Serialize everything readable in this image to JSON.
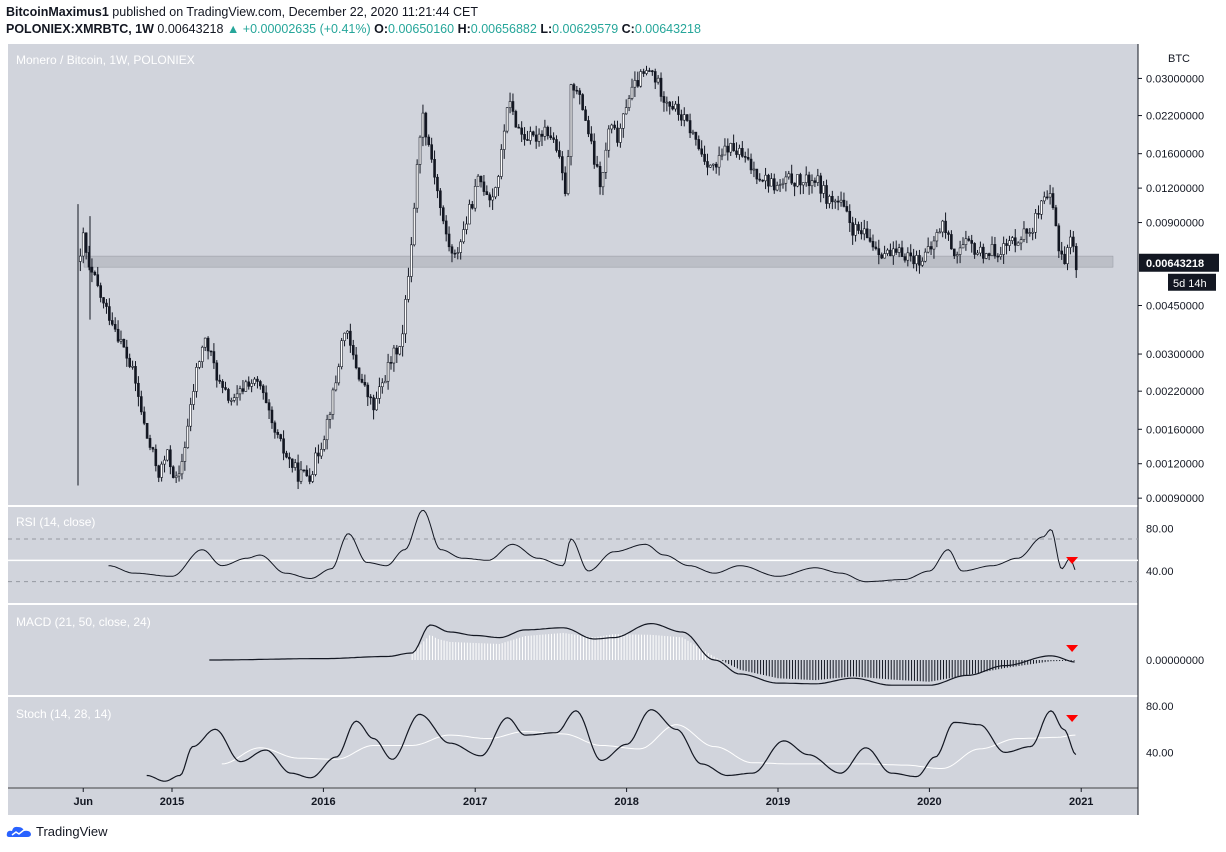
{
  "header": {
    "author": "BitcoinMaximus1",
    "published_text": "published on TradingView.com, December 22, 2020 11:21:44 CET",
    "symbol": "POLONIEX:XMRBTC, 1W",
    "last": "0.00643218",
    "change": "▲ +0.00002635 (+0.41%)",
    "open_label": "O:",
    "open": "0.00650160",
    "high_label": "H:",
    "high": "0.00656882",
    "low_label": "L:",
    "low": "0.00629579",
    "close_label": "C:",
    "close": "0.00643218"
  },
  "chart_data": [
    {
      "type": "candlestick",
      "title": "Monero / Bitcoin, 1W, POLONIEX",
      "currency_label": "BTC",
      "y_scale": "log",
      "y_ticks": [
        "0.03000000",
        "0.02200000",
        "0.01600000",
        "0.01200000",
        "0.00900000",
        "0.00450000",
        "0.00300000",
        "0.00220000",
        "0.00160000",
        "0.00120000",
        "0.00090000"
      ],
      "ylim": [
        0.00085,
        0.04
      ],
      "last_price": "0.00643218",
      "countdown": "5d 14h",
      "support_zone": [
        0.0062,
        0.0068
      ],
      "price_path": [
        [
          "2014-05-25",
          0.0065
        ],
        [
          "2014-06-01",
          0.008
        ],
        [
          "2014-06-15",
          0.006
        ],
        [
          "2014-07-01",
          0.0055
        ],
        [
          "2014-07-20",
          0.0045
        ],
        [
          "2014-08-10",
          0.004
        ],
        [
          "2014-09-01",
          0.0033
        ],
        [
          "2014-10-01",
          0.0025
        ],
        [
          "2014-11-01",
          0.0015
        ],
        [
          "2014-12-01",
          0.0011
        ],
        [
          "2014-12-20",
          0.0013
        ],
        [
          "2015-01-15",
          0.001
        ],
        [
          "2015-02-10",
          0.0017
        ],
        [
          "2015-03-01",
          0.0026
        ],
        [
          "2015-03-20",
          0.0034
        ],
        [
          "2015-04-10",
          0.0028
        ],
        [
          "2015-05-01",
          0.0022
        ],
        [
          "2015-06-01",
          0.002
        ],
        [
          "2015-07-01",
          0.0024
        ],
        [
          "2015-08-01",
          0.0023
        ],
        [
          "2015-09-01",
          0.0016
        ],
        [
          "2015-10-01",
          0.0013
        ],
        [
          "2015-11-01",
          0.0011
        ],
        [
          "2015-12-01",
          0.0011
        ],
        [
          "2016-01-01",
          0.0015
        ],
        [
          "2016-02-01",
          0.0024
        ],
        [
          "2016-02-20",
          0.0038
        ],
        [
          "2016-03-10",
          0.003
        ],
        [
          "2016-04-01",
          0.0024
        ],
        [
          "2016-05-01",
          0.0019
        ],
        [
          "2016-06-01",
          0.0026
        ],
        [
          "2016-07-10",
          0.0035
        ],
        [
          "2016-08-01",
          0.008
        ],
        [
          "2016-08-25",
          0.023
        ],
        [
          "2016-09-20",
          0.015
        ],
        [
          "2016-10-15",
          0.009
        ],
        [
          "2016-11-10",
          0.0065
        ],
        [
          "2016-12-10",
          0.009
        ],
        [
          "2017-01-10",
          0.013
        ],
        [
          "2017-02-10",
          0.011
        ],
        [
          "2017-03-01",
          0.014
        ],
        [
          "2017-03-20",
          0.025
        ],
        [
          "2017-04-20",
          0.019
        ],
        [
          "2017-05-20",
          0.018
        ],
        [
          "2017-06-20",
          0.02
        ],
        [
          "2017-07-15",
          0.017
        ],
        [
          "2017-08-10",
          0.011
        ],
        [
          "2017-08-20",
          0.03
        ],
        [
          "2017-09-20",
          0.023
        ],
        [
          "2017-10-15",
          0.015
        ],
        [
          "2017-11-01",
          0.012
        ],
        [
          "2017-11-20",
          0.02
        ],
        [
          "2017-12-15",
          0.018
        ],
        [
          "2018-01-01",
          0.025
        ],
        [
          "2018-02-01",
          0.03
        ],
        [
          "2018-03-01",
          0.032
        ],
        [
          "2018-04-01",
          0.026
        ],
        [
          "2018-05-01",
          0.023
        ],
        [
          "2018-06-01",
          0.02
        ],
        [
          "2018-07-01",
          0.016
        ],
        [
          "2018-08-01",
          0.014
        ],
        [
          "2018-09-01",
          0.017
        ],
        [
          "2018-10-01",
          0.016
        ],
        [
          "2018-11-01",
          0.014
        ],
        [
          "2018-12-01",
          0.013
        ],
        [
          "2019-01-01",
          0.012
        ],
        [
          "2019-02-01",
          0.013
        ],
        [
          "2019-03-01",
          0.0125
        ],
        [
          "2019-04-01",
          0.013
        ],
        [
          "2019-05-01",
          0.011
        ],
        [
          "2019-06-01",
          0.0105
        ],
        [
          "2019-07-01",
          0.0085
        ],
        [
          "2019-08-01",
          0.008
        ],
        [
          "2019-09-01",
          0.0072
        ],
        [
          "2019-10-01",
          0.0068
        ],
        [
          "2019-11-01",
          0.007
        ],
        [
          "2019-12-01",
          0.0066
        ],
        [
          "2020-01-01",
          0.007
        ],
        [
          "2020-02-01",
          0.009
        ],
        [
          "2020-03-01",
          0.007
        ],
        [
          "2020-04-01",
          0.0075
        ],
        [
          "2020-05-01",
          0.007
        ],
        [
          "2020-06-01",
          0.0071
        ],
        [
          "2020-07-01",
          0.0073
        ],
        [
          "2020-08-01",
          0.008
        ],
        [
          "2020-09-01",
          0.0085
        ],
        [
          "2020-10-01",
          0.0105
        ],
        [
          "2020-10-20",
          0.011
        ],
        [
          "2020-11-10",
          0.0072
        ],
        [
          "2020-11-25",
          0.0065
        ],
        [
          "2020-12-05",
          0.0082
        ],
        [
          "2020-12-20",
          0.0064
        ]
      ]
    },
    {
      "type": "line",
      "title": "RSI (14, close)",
      "y_ticks": [
        "80.00",
        "40.00"
      ],
      "ylim": [
        10,
        100
      ],
      "bands": [
        30,
        70
      ],
      "midline": 50,
      "marker": {
        "x": "2020-12-10",
        "type": "red-down-triangle"
      },
      "series_path": [
        [
          "2014-08-01",
          45
        ],
        [
          "2014-10-01",
          38
        ],
        [
          "2015-01-01",
          35
        ],
        [
          "2015-03-15",
          60
        ],
        [
          "2015-05-01",
          45
        ],
        [
          "2015-07-01",
          52
        ],
        [
          "2015-08-01",
          55
        ],
        [
          "2015-10-01",
          38
        ],
        [
          "2015-12-01",
          33
        ],
        [
          "2016-01-20",
          42
        ],
        [
          "2016-03-01",
          75
        ],
        [
          "2016-04-15",
          48
        ],
        [
          "2016-06-01",
          45
        ],
        [
          "2016-07-15",
          60
        ],
        [
          "2016-08-28",
          97
        ],
        [
          "2016-10-10",
          60
        ],
        [
          "2016-12-01",
          52
        ],
        [
          "2017-02-01",
          50
        ],
        [
          "2017-04-01",
          65
        ],
        [
          "2017-06-01",
          52
        ],
        [
          "2017-08-01",
          45
        ],
        [
          "2017-08-20",
          70
        ],
        [
          "2017-10-01",
          40
        ],
        [
          "2017-12-01",
          58
        ],
        [
          "2018-02-15",
          65
        ],
        [
          "2018-04-01",
          55
        ],
        [
          "2018-06-01",
          45
        ],
        [
          "2018-08-01",
          38
        ],
        [
          "2018-10-01",
          45
        ],
        [
          "2019-01-01",
          35
        ],
        [
          "2019-04-01",
          43
        ],
        [
          "2019-06-01",
          38
        ],
        [
          "2019-08-01",
          30
        ],
        [
          "2019-11-01",
          32
        ],
        [
          "2020-01-01",
          40
        ],
        [
          "2020-02-15",
          60
        ],
        [
          "2020-03-20",
          40
        ],
        [
          "2020-06-01",
          45
        ],
        [
          "2020-08-01",
          52
        ],
        [
          "2020-10-01",
          72
        ],
        [
          "2020-10-20",
          79
        ],
        [
          "2020-11-15",
          42
        ],
        [
          "2020-12-05",
          52
        ],
        [
          "2020-12-20",
          40
        ]
      ]
    },
    {
      "type": "line",
      "title": "MACD (21, 50, close, 24)",
      "y_ticks": [
        "0.00000000"
      ],
      "marker": {
        "x": "2020-12-10",
        "type": "red-down-triangle"
      },
      "macd_path": [
        [
          "2015-04-01",
          0
        ],
        [
          "2016-01-01",
          0.2
        ],
        [
          "2016-06-01",
          0.5
        ],
        [
          "2016-08-01",
          1.0
        ],
        [
          "2016-09-15",
          5.0
        ],
        [
          "2016-11-01",
          4.0
        ],
        [
          "2017-01-01",
          3.5
        ],
        [
          "2017-03-01",
          3.2
        ],
        [
          "2017-05-01",
          4.3
        ],
        [
          "2017-08-01",
          4.6
        ],
        [
          "2017-10-15",
          3.0
        ],
        [
          "2017-12-01",
          3.2
        ],
        [
          "2018-03-01",
          5.2
        ],
        [
          "2018-05-15",
          4.0
        ],
        [
          "2018-08-01",
          0.0
        ],
        [
          "2018-10-01",
          -2.0
        ],
        [
          "2019-01-01",
          -3.3
        ],
        [
          "2019-04-01",
          -3.4
        ],
        [
          "2019-07-01",
          -2.6
        ],
        [
          "2019-10-01",
          -3.6
        ],
        [
          "2020-01-01",
          -3.6
        ],
        [
          "2020-04-01",
          -2.2
        ],
        [
          "2020-07-01",
          -0.8
        ],
        [
          "2020-10-20",
          0.6
        ],
        [
          "2020-12-20",
          -0.3
        ]
      ],
      "signal_path": [
        [
          "2016-08-01",
          0
        ],
        [
          "2016-10-01",
          1.3
        ],
        [
          "2017-01-01",
          0.8
        ],
        [
          "2017-05-01",
          0.5
        ],
        [
          "2017-08-01",
          0.3
        ],
        [
          "2017-10-15",
          -0.6
        ],
        [
          "2017-12-01",
          -0.9
        ],
        [
          "2018-03-01",
          1.2
        ],
        [
          "2018-05-15",
          0.4
        ],
        [
          "2018-08-01",
          -0.5
        ],
        [
          "2019-01-01",
          -0.4
        ],
        [
          "2019-07-01",
          0.0
        ],
        [
          "2019-10-01",
          -0.5
        ],
        [
          "2020-04-01",
          0.2
        ],
        [
          "2020-10-20",
          0.8
        ],
        [
          "2020-12-20",
          -0.2
        ]
      ]
    },
    {
      "type": "line",
      "title": "Stoch (14, 28, 14)",
      "y_ticks": [
        "80.00",
        "40.00"
      ],
      "ylim": [
        10,
        88
      ],
      "marker": {
        "x": "2020-12-10",
        "type": "red-down-triangle"
      },
      "k_path": [
        [
          "2014-11-01",
          20
        ],
        [
          "2014-12-15",
          15
        ],
        [
          "2015-01-20",
          20
        ],
        [
          "2015-02-20",
          45
        ],
        [
          "2015-04-15",
          60
        ],
        [
          "2015-06-15",
          32
        ],
        [
          "2015-08-15",
          42
        ],
        [
          "2015-10-15",
          22
        ],
        [
          "2015-12-01",
          18
        ],
        [
          "2016-02-01",
          36
        ],
        [
          "2016-03-20",
          67
        ],
        [
          "2016-05-01",
          52
        ],
        [
          "2016-06-15",
          34
        ],
        [
          "2016-08-20",
          73
        ],
        [
          "2016-11-01",
          48
        ],
        [
          "2017-01-15",
          37
        ],
        [
          "2017-03-20",
          70
        ],
        [
          "2017-05-01",
          55
        ],
        [
          "2017-07-15",
          57
        ],
        [
          "2017-09-01",
          76
        ],
        [
          "2017-11-01",
          33
        ],
        [
          "2018-01-01",
          47
        ],
        [
          "2018-03-01",
          77
        ],
        [
          "2018-05-01",
          60
        ],
        [
          "2018-07-01",
          30
        ],
        [
          "2018-09-01",
          20
        ],
        [
          "2018-11-01",
          22
        ],
        [
          "2019-01-15",
          50
        ],
        [
          "2019-03-15",
          38
        ],
        [
          "2019-06-01",
          22
        ],
        [
          "2019-08-01",
          44
        ],
        [
          "2019-10-01",
          22
        ],
        [
          "2019-12-01",
          19
        ],
        [
          "2020-01-15",
          36
        ],
        [
          "2020-03-01",
          66
        ],
        [
          "2020-05-01",
          64
        ],
        [
          "2020-07-01",
          40
        ],
        [
          "2020-09-01",
          45
        ],
        [
          "2020-10-20",
          76
        ],
        [
          "2020-11-20",
          60
        ],
        [
          "2020-12-20",
          38
        ]
      ],
      "d_path": [
        [
          "2015-05-01",
          30
        ],
        [
          "2015-08-01",
          44
        ],
        [
          "2015-11-01",
          35
        ],
        [
          "2016-02-01",
          34
        ],
        [
          "2016-05-01",
          46
        ],
        [
          "2016-08-01",
          46
        ],
        [
          "2016-11-01",
          55
        ],
        [
          "2017-02-01",
          52
        ],
        [
          "2017-05-01",
          58
        ],
        [
          "2017-08-01",
          56
        ],
        [
          "2017-11-01",
          46
        ],
        [
          "2018-02-01",
          43
        ],
        [
          "2018-05-01",
          64
        ],
        [
          "2018-08-01",
          45
        ],
        [
          "2018-11-01",
          31
        ],
        [
          "2019-02-01",
          30
        ],
        [
          "2019-05-01",
          30
        ],
        [
          "2019-08-01",
          30
        ],
        [
          "2019-11-01",
          29
        ],
        [
          "2020-02-01",
          26
        ],
        [
          "2020-05-01",
          43
        ],
        [
          "2020-08-01",
          52
        ],
        [
          "2020-11-01",
          53
        ],
        [
          "2020-12-20",
          55
        ]
      ]
    }
  ],
  "time_axis": {
    "labels": [
      "Jun",
      "2015",
      "2016",
      "2017",
      "2018",
      "2019",
      "2020",
      "2021"
    ],
    "dates": [
      "2014-06-01",
      "2015-01-01",
      "2016-01-01",
      "2017-01-01",
      "2018-01-01",
      "2019-01-01",
      "2020-01-01",
      "2021-01-01"
    ]
  },
  "colors": {
    "panel_bg": "#d1d4dc",
    "candle": "#131722",
    "marker": "#ff0000",
    "price_label_bg": "#131722"
  },
  "footer": {
    "brand": "TradingView",
    "icon": "tradingview-cloud-icon"
  }
}
